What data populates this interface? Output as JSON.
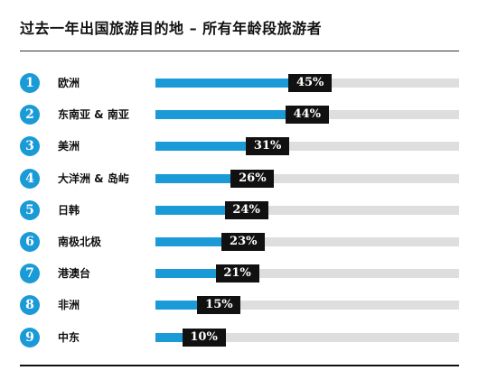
{
  "title": "过去一年出国旅游目的地 – 所有年龄段旅游者",
  "chart_data": {
    "type": "bar",
    "orientation": "horizontal",
    "title": "过去一年出国旅游目的地 – 所有年龄段旅游者",
    "xlim": [
      0,
      100
    ],
    "value_suffix": "%",
    "categories": [
      "欧洲",
      "东南亚 & 南亚",
      "美洲",
      "大洋洲 & 岛屿",
      "日韩",
      "南极北极",
      "港澳台",
      "非洲",
      "中东"
    ],
    "ranks": [
      "1",
      "2",
      "3",
      "4",
      "5",
      "6",
      "7",
      "8",
      "9"
    ],
    "values": [
      45,
      44,
      31,
      26,
      24,
      23,
      21,
      15,
      10
    ],
    "value_labels": [
      "45%",
      "44%",
      "31%",
      "26%",
      "24%",
      "23%",
      "21%",
      "15%",
      "10%"
    ],
    "colors": {
      "bar": "#1a9ad6",
      "track": "#dedede",
      "rank_badge": "#1a9ad6",
      "value_box": "#111111"
    },
    "grid": false,
    "legend": "none"
  }
}
